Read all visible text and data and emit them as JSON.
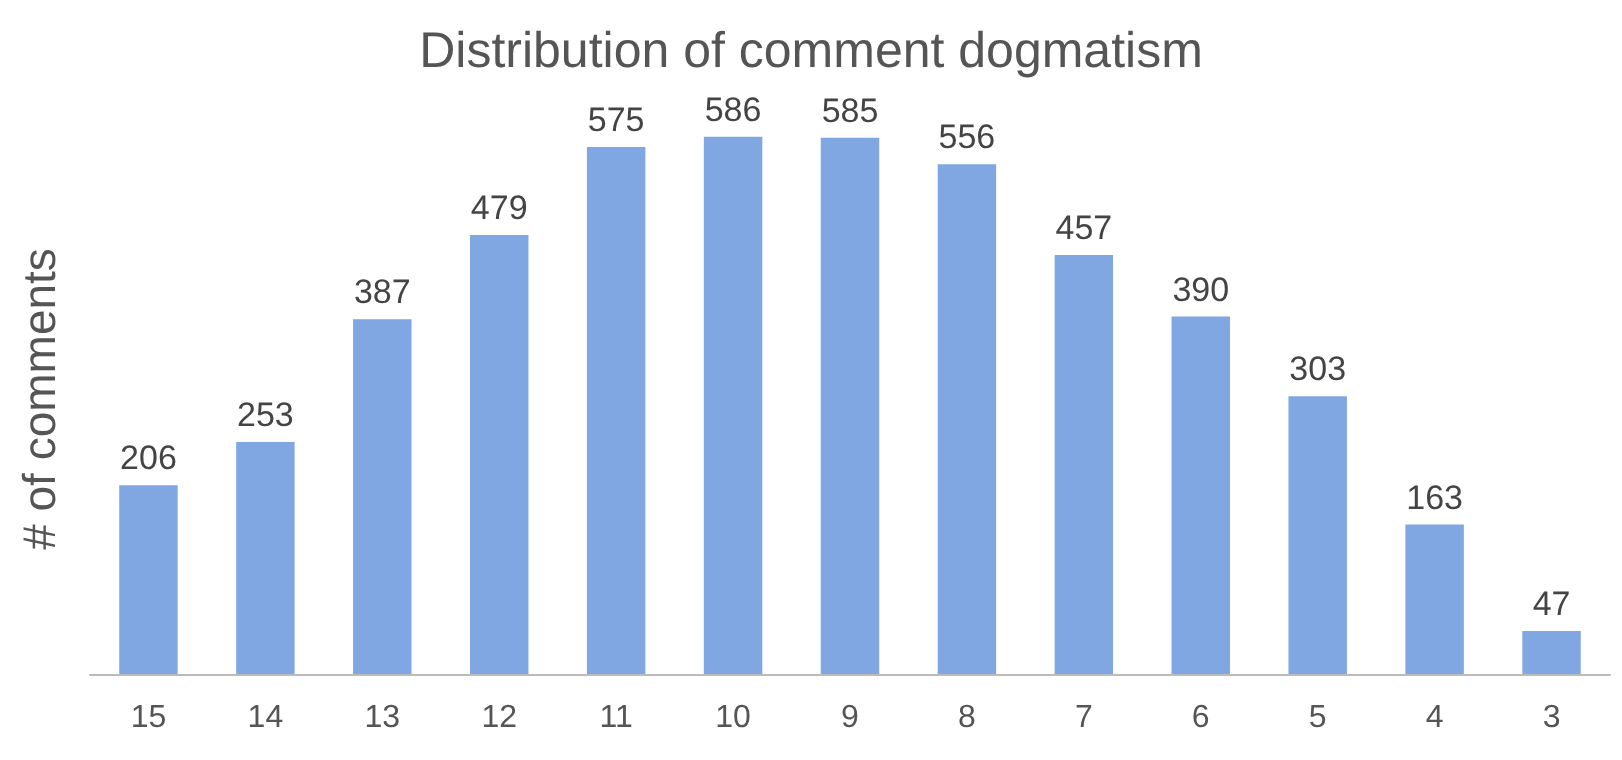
{
  "chart_data": {
    "type": "bar",
    "title": "Distribution of comment dogmatism",
    "ylabel": "# of comments",
    "categories": [
      "15",
      "14",
      "13",
      "12",
      "11",
      "10",
      "9",
      "8",
      "7",
      "6",
      "5",
      "4",
      "3"
    ],
    "values": [
      206,
      253,
      387,
      479,
      575,
      586,
      585,
      556,
      457,
      390,
      303,
      163,
      47
    ],
    "color": "#80a7e2",
    "data_labels": true
  }
}
